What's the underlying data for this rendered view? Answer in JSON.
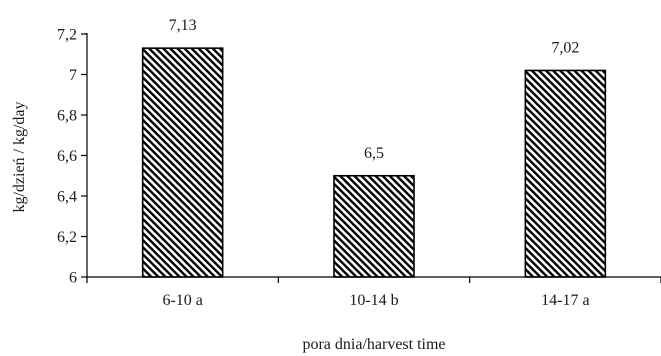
{
  "chart_data": {
    "type": "bar",
    "categories": [
      "6-10 a",
      "10-14 b",
      "14-17 a"
    ],
    "values": [
      7.13,
      6.5,
      7.02
    ],
    "data_labels": [
      "7,13",
      "6,5",
      "7,02"
    ],
    "title": "",
    "xlabel": "pora dnia/harvest time",
    "ylabel": "kg/dzień / kg/day",
    "ylim": [
      6,
      7.2
    ],
    "yticks": [
      6,
      6.2,
      6.4,
      6.6,
      6.8,
      7,
      7.2
    ],
    "ytick_labels": [
      "6",
      "6,2",
      "6,4",
      "6,6",
      "6,8",
      "7",
      "7,2"
    ],
    "grid": false,
    "legend": "none",
    "bar_fill": "diagonal-hatch",
    "colors": {
      "bar_stroke": "#000000",
      "hatch": "#000000",
      "background": "#ffffff"
    }
  }
}
